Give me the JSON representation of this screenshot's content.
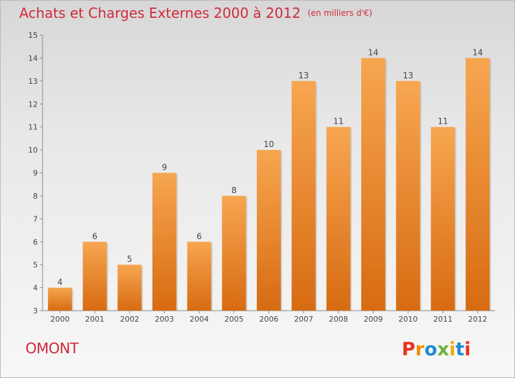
{
  "header": {
    "title": "Achats et Charges Externes 2000 à 2012",
    "unit": "(en milliers d'€)"
  },
  "footer": {
    "commune": "OMONT",
    "brand": "Proxiti"
  },
  "colors": {
    "title": "#cf2a3c",
    "bar_light": "#f7a650",
    "bar_dark": "#d76b12",
    "brand_letters": [
      "#e8321e",
      "#f08a00",
      "#1d8bd3",
      "#6cb33e",
      "#f2a900",
      "#1d8bd3",
      "#e8321e"
    ]
  },
  "chart_data": {
    "type": "bar",
    "title": "Achats et Charges Externes 2000 à 2012",
    "subtitle": "(en milliers d'€)",
    "categories": [
      "2000",
      "2001",
      "2002",
      "2003",
      "2004",
      "2005",
      "2006",
      "2007",
      "2008",
      "2009",
      "2010",
      "2011",
      "2012"
    ],
    "values": [
      4,
      6,
      5,
      9,
      6,
      8,
      10,
      13,
      11,
      14,
      13,
      11,
      14
    ],
    "ylim": [
      3,
      15
    ],
    "yticks": [
      3,
      4,
      5,
      6,
      7,
      8,
      9,
      10,
      11,
      12,
      13,
      14,
      15
    ],
    "grid": false,
    "legend": "none"
  }
}
